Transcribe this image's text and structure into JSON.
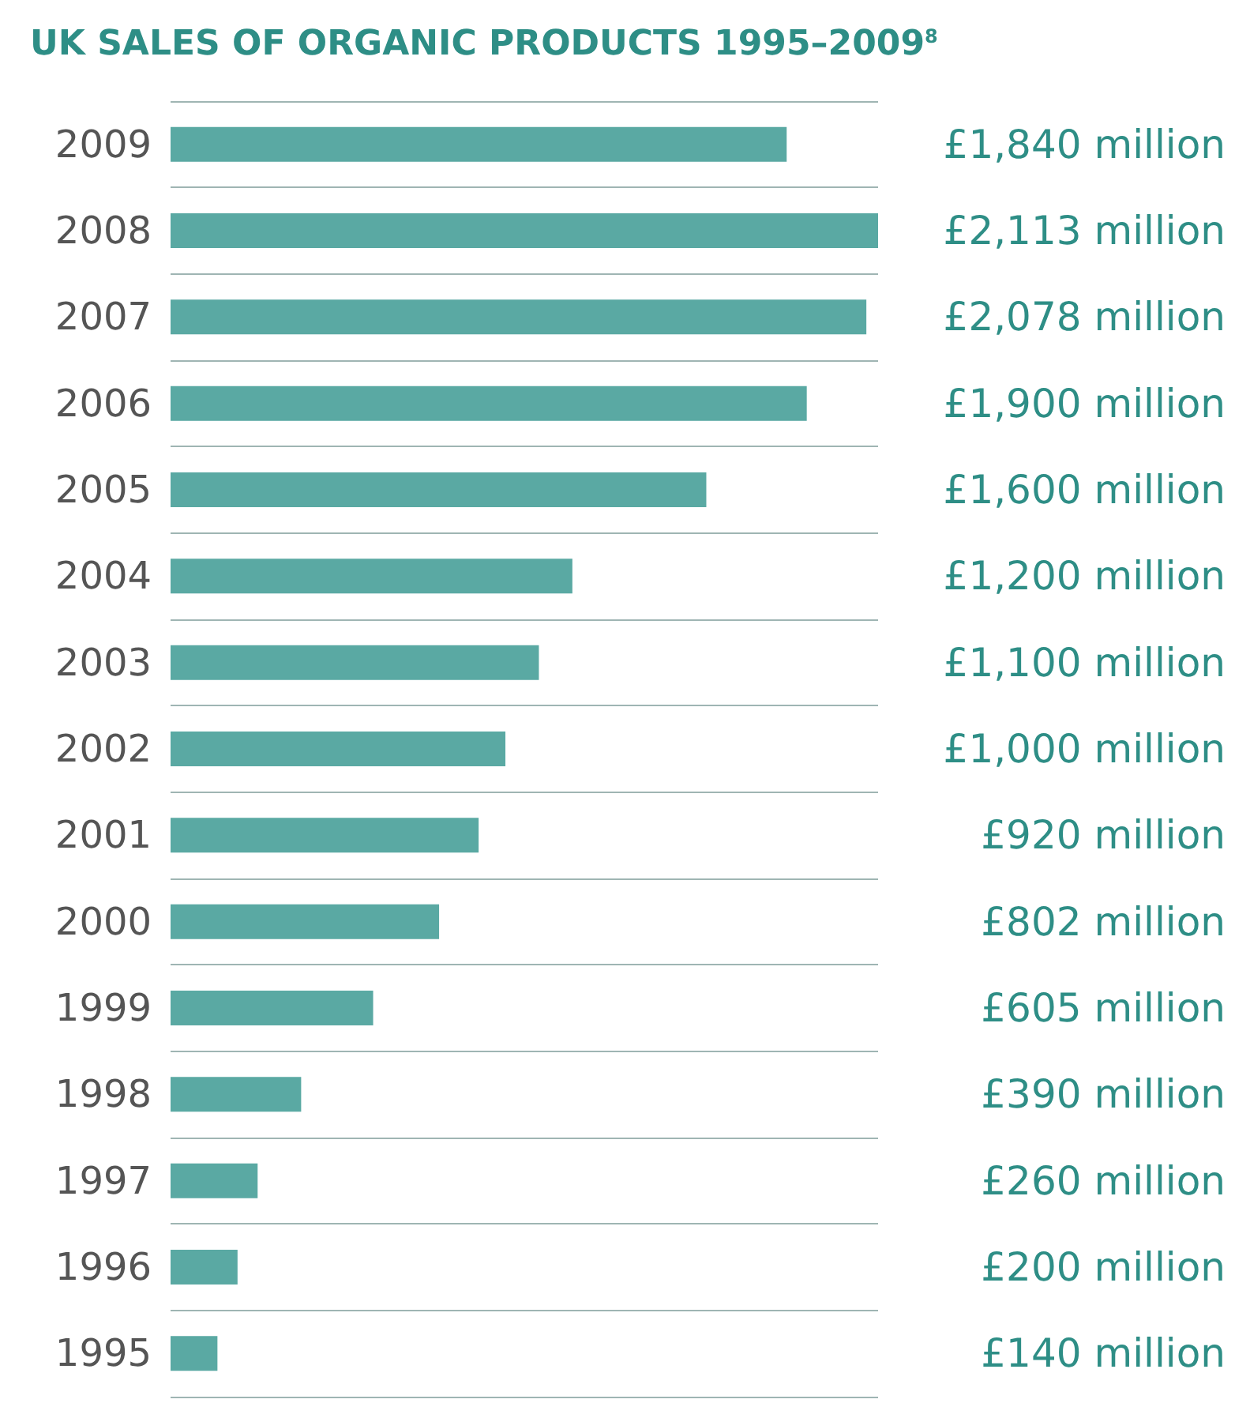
{
  "chart_data": {
    "type": "bar",
    "orientation": "horizontal",
    "title": "UK SALES OF ORGANIC PRODUCTS 1995–2009$^{8}$",
    "categories": [
      "2009",
      "2008",
      "2007",
      "2006",
      "2005",
      "2004",
      "2003",
      "2002",
      "2001",
      "2000",
      "1999",
      "1998",
      "1997",
      "1996",
      "1995"
    ],
    "values": [
      1840,
      2113,
      2078,
      1900,
      1600,
      1200,
      1100,
      1000,
      920,
      802,
      605,
      390,
      260,
      200,
      140
    ],
    "value_labels": [
      "£1,840 million",
      "£2,113 million",
      "£2,078 million",
      "£1,900 million",
      "£1,600 million",
      "£1,200 million",
      "£1,100 million",
      "£1,000 million",
      "£920 million",
      "£802 million",
      "£605 million",
      "£390 million",
      "£260 million",
      "£200 million",
      "£140 million"
    ],
    "color": "#5aa9a3",
    "grid": "y",
    "tick_labels": "y"
  }
}
